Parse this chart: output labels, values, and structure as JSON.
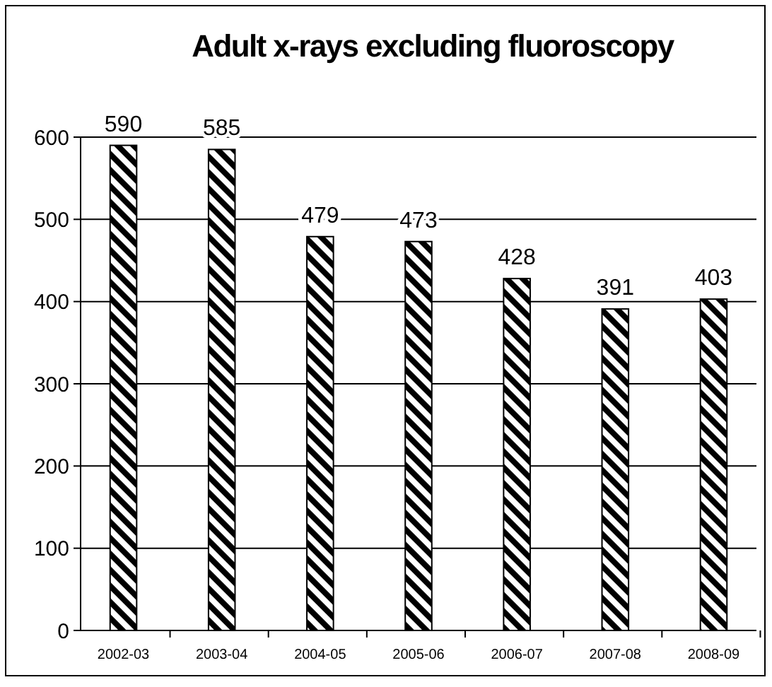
{
  "chart_data": {
    "type": "bar",
    "title": "Adult x-rays excluding fluoroscopy",
    "categories": [
      "2002-03",
      "2003-04",
      "2004-05",
      "2005-06",
      "2006-07",
      "2007-08",
      "2008-09"
    ],
    "values": [
      590,
      585,
      479,
      473,
      428,
      391,
      403
    ],
    "color": "#000000",
    "ylim": [
      0,
      600
    ],
    "yticks": [
      0,
      100,
      200,
      300,
      400,
      500,
      600
    ],
    "grid": "y",
    "data_labels": true
  }
}
